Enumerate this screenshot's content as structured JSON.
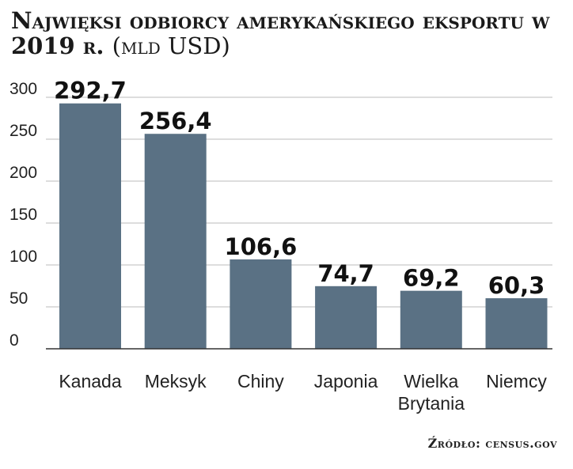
{
  "title_main": "Najwięksi odbiorcy amerykańskiego eksportu w 2019 r.",
  "title_unit": "(mld USD)",
  "source": "Źródło: census.gov",
  "colors": {
    "bar": "#5a7184",
    "grid": "#bbbbbb",
    "axis": "#333333"
  },
  "chart_data": {
    "type": "bar",
    "categories": [
      "Kanada",
      "Meksyk",
      "Chiny",
      "Japonia",
      "Wielka Brytania",
      "Niemcy"
    ],
    "category_lines": [
      [
        "Kanada"
      ],
      [
        "Meksyk"
      ],
      [
        "Chiny"
      ],
      [
        "Japonia"
      ],
      [
        "Wielka",
        "Brytania"
      ],
      [
        "Niemcy"
      ]
    ],
    "values": [
      292.7,
      256.4,
      106.6,
      74.7,
      69.2,
      60.3
    ],
    "value_labels": [
      "292,7",
      "256,4",
      "106,6",
      "74,7",
      "69,2",
      "60,3"
    ],
    "yticks": [
      0,
      50,
      100,
      150,
      200,
      250,
      300
    ],
    "ylim": [
      0,
      300
    ],
    "grid": true,
    "xlabel": "",
    "ylabel": ""
  }
}
